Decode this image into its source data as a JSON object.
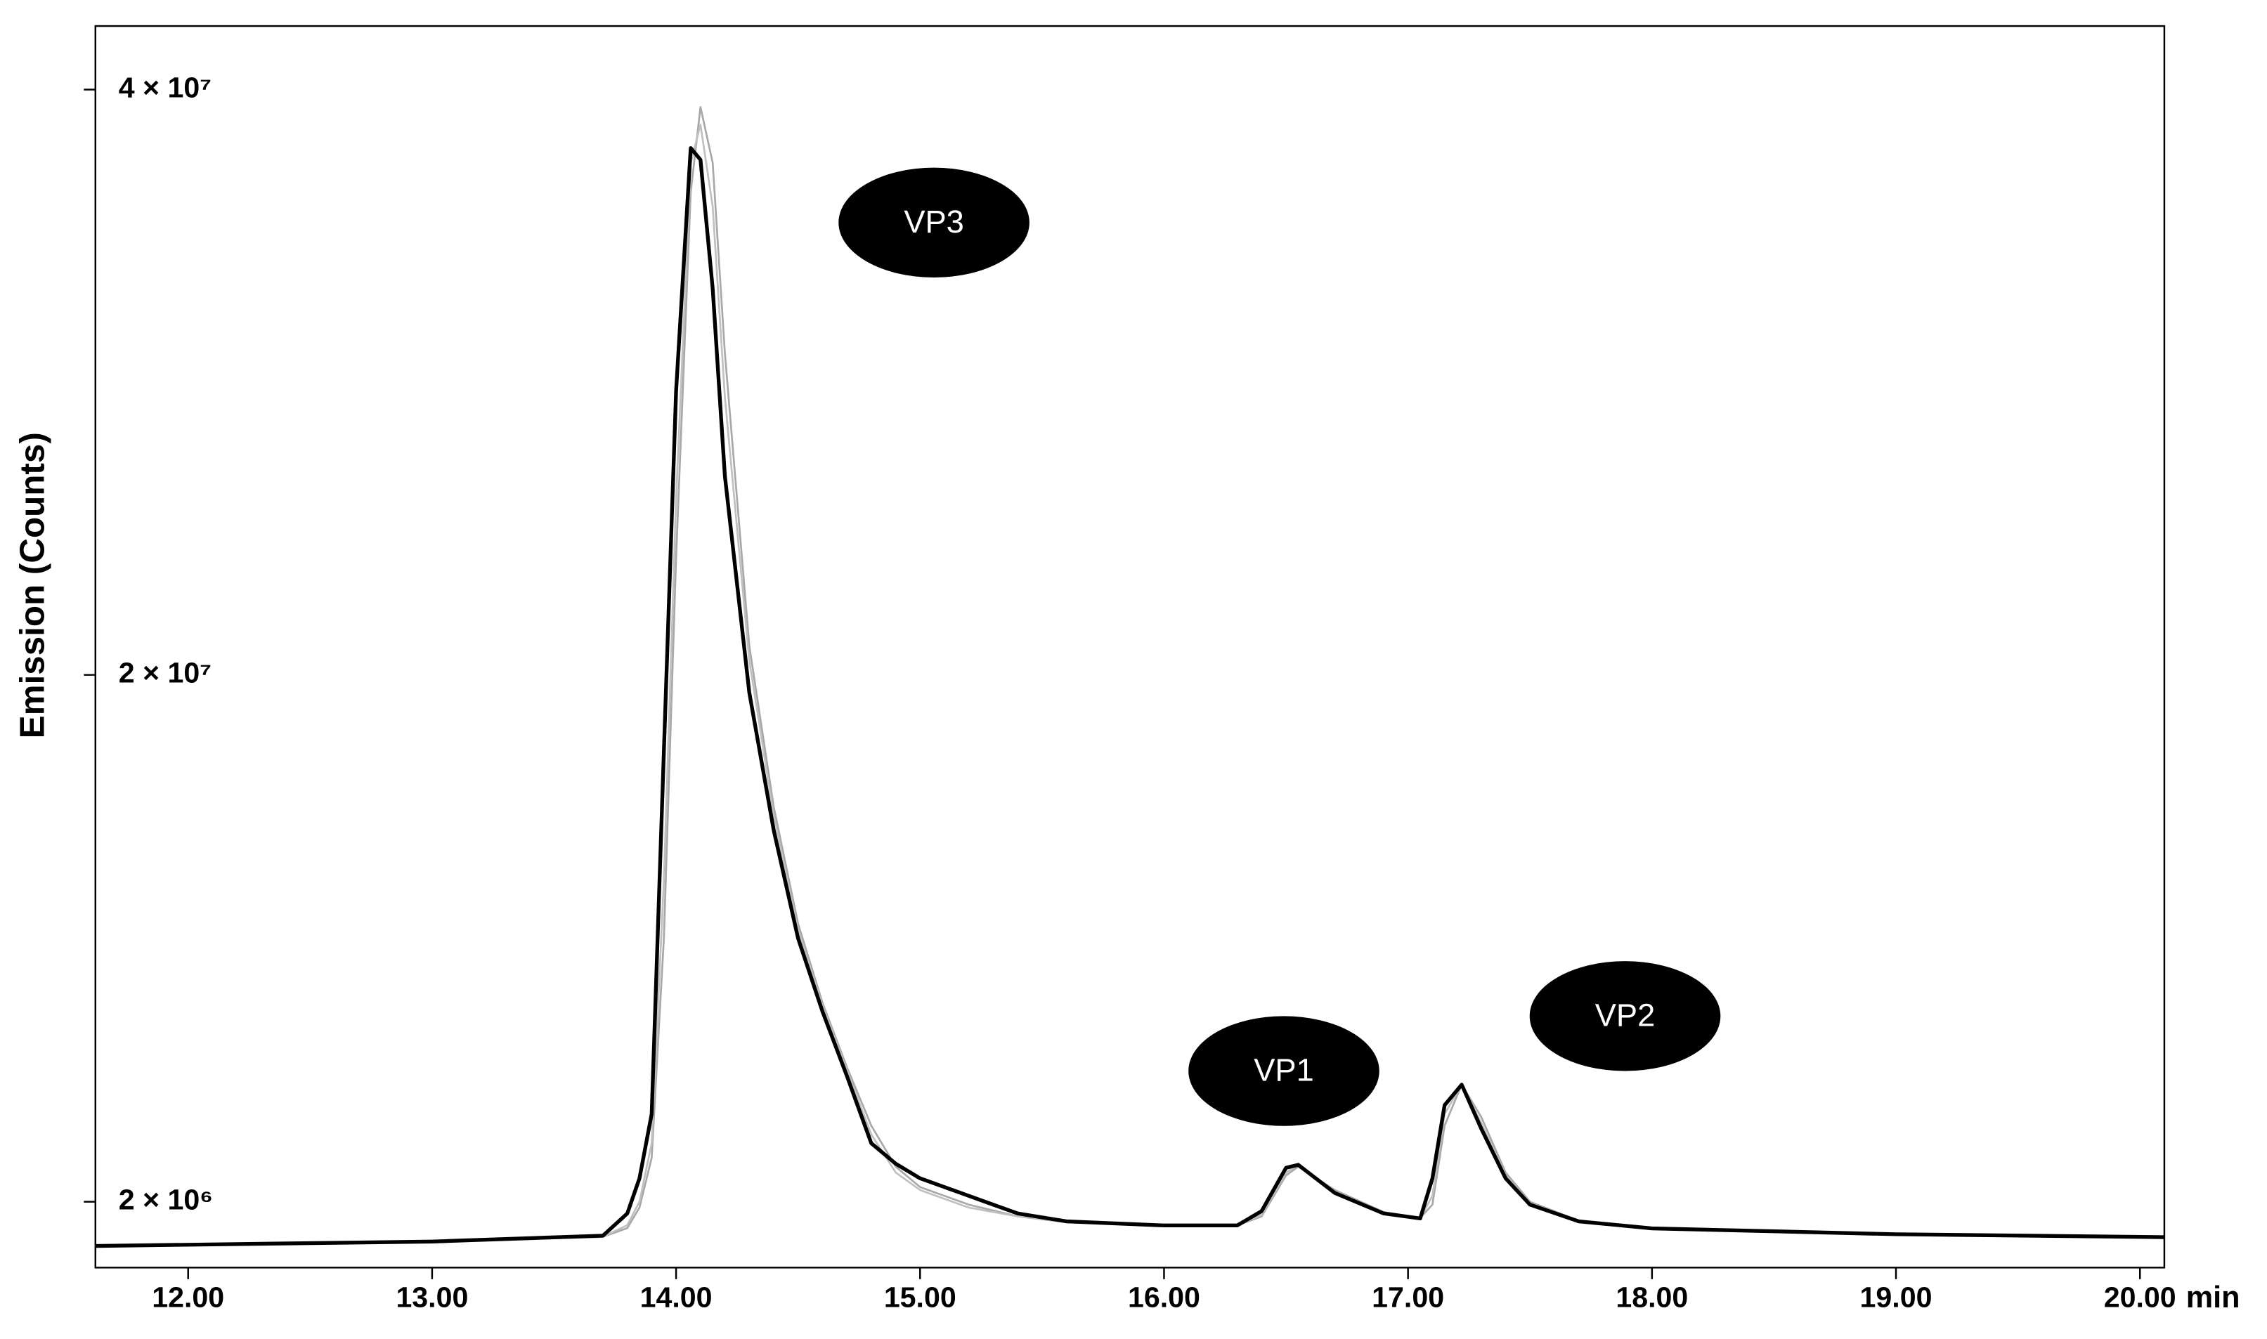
{
  "chart_data": {
    "type": "line",
    "y_label": "Emission (Counts)",
    "x_label": "min",
    "annotations": [
      "VP3",
      "VP1",
      "VP2"
    ],
    "xlim": [
      11.62,
      20.1
    ],
    "ylim": [
      -250000,
      42170000
    ],
    "xticks": [
      {
        "value": 12,
        "label": "12.00"
      },
      {
        "value": 13,
        "label": "13.00"
      },
      {
        "value": 14,
        "label": "14.00"
      },
      {
        "value": 15,
        "label": "15.00"
      },
      {
        "value": 16,
        "label": "16.00"
      },
      {
        "value": 17,
        "label": "17.00"
      },
      {
        "value": 18,
        "label": "18.00"
      },
      {
        "value": 19,
        "label": "19.00"
      },
      {
        "value": 20,
        "label": "20.00"
      }
    ],
    "yticks": [
      {
        "value": 2000000,
        "label": "2 × 10⁶"
      },
      {
        "value": 20000000,
        "label": "2 × 10⁷"
      },
      {
        "value": 40000000,
        "label": "4 × 10⁷"
      }
    ],
    "x": [
      11.62,
      13.0,
      13.7,
      13.8,
      13.85,
      13.9,
      13.95,
      14.0,
      14.06,
      14.1,
      14.15,
      14.2,
      14.3,
      14.4,
      14.5,
      14.6,
      14.7,
      14.8,
      14.9,
      15.0,
      15.2,
      15.4,
      15.6,
      16.0,
      16.3,
      16.4,
      16.5,
      16.55,
      16.7,
      16.9,
      17.05,
      17.1,
      17.15,
      17.22,
      17.3,
      17.4,
      17.5,
      17.7,
      18.0,
      19.0,
      20.1
    ],
    "series": [
      {
        "color": "#a8a8a8",
        "values": [
          490000,
          640000,
          800000,
          1100000,
          1800000,
          3500000,
          11000000,
          24000000,
          36500000,
          39400000,
          37500000,
          31000000,
          21000000,
          15500000,
          11500000,
          8800000,
          6600000,
          4600000,
          3200000,
          2500000,
          1900000,
          1500000,
          1300000,
          1190000,
          1190000,
          1500000,
          2900000,
          3200000,
          2400000,
          1650000,
          1450000,
          1900000,
          4600000,
          6000000,
          4900000,
          3000000,
          2000000,
          1350000,
          1090000,
          890000,
          790000
        ]
      },
      {
        "color": "#c0c0c0",
        "values": [
          490000,
          640000,
          800000,
          1200000,
          2000000,
          4000000,
          13000000,
          26000000,
          37500000,
          38800000,
          36000000,
          29500000,
          20500000,
          15200000,
          11300000,
          8700000,
          6500000,
          4300000,
          3000000,
          2400000,
          1800000,
          1500000,
          1300000,
          1190000,
          1190000,
          1550000,
          3000000,
          3250000,
          2350000,
          1620000,
          1440000,
          2200000,
          5000000,
          6000000,
          4700000,
          2900000,
          1950000,
          1340000,
          1090000,
          890000,
          790000
        ]
      },
      {
        "color": "#000000",
        "values": [
          490000,
          640000,
          840000,
          1600000,
          2800000,
          5000000,
          17400000,
          29700000,
          38000000,
          37600000,
          33200000,
          26800000,
          19400000,
          14700000,
          11000000,
          8500000,
          6300000,
          4000000,
          3300000,
          2800000,
          2200000,
          1600000,
          1330000,
          1190000,
          1190000,
          1680000,
          3160000,
          3260000,
          2300000,
          1600000,
          1430000,
          2800000,
          5300000,
          6000000,
          4500000,
          2800000,
          1900000,
          1330000,
          1090000,
          890000,
          790000
        ]
      }
    ]
  }
}
